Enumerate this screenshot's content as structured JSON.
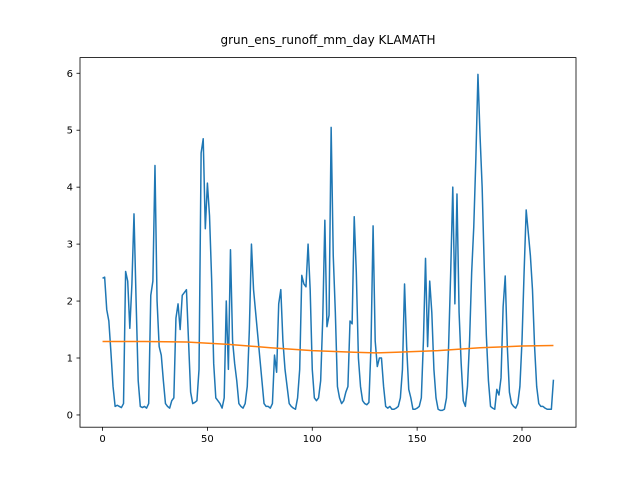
{
  "chart_data": {
    "type": "line",
    "title": "grun_ens_runoff_mm_day KLAMATH",
    "xlim": [
      -10.75,
      225.75
    ],
    "xticks": [
      0,
      50,
      100,
      150,
      200
    ],
    "ylim": [
      -0.215,
      6.275
    ],
    "yticks": [
      0,
      1,
      2,
      3,
      4,
      5,
      6
    ],
    "series": [
      {
        "color": "#1f77b4",
        "x": [
          0,
          1,
          2,
          3,
          4,
          5,
          6,
          7,
          8,
          9,
          10,
          11,
          12,
          13,
          14,
          15,
          16,
          17,
          18,
          19,
          20,
          21,
          22,
          23,
          24,
          25,
          26,
          27,
          28,
          29,
          30,
          31,
          32,
          33,
          34,
          35,
          36,
          37,
          38,
          39,
          40,
          41,
          42,
          43,
          44,
          45,
          46,
          47,
          48,
          49,
          50,
          51,
          52,
          53,
          54,
          55,
          56,
          57,
          58,
          59,
          60,
          61,
          62,
          63,
          64,
          65,
          66,
          67,
          68,
          69,
          70,
          71,
          72,
          73,
          74,
          75,
          76,
          77,
          78,
          79,
          80,
          81,
          82,
          83,
          84,
          85,
          86,
          87,
          88,
          89,
          90,
          91,
          92,
          93,
          94,
          95,
          96,
          97,
          98,
          99,
          100,
          101,
          102,
          103,
          104,
          105,
          106,
          107,
          108,
          109,
          110,
          111,
          112,
          113,
          114,
          115,
          116,
          117,
          118,
          119,
          120,
          121,
          122,
          123,
          124,
          125,
          126,
          127,
          128,
          129,
          130,
          131,
          132,
          133,
          134,
          135,
          136,
          137,
          138,
          139,
          140,
          141,
          142,
          143,
          144,
          145,
          146,
          147,
          148,
          149,
          150,
          151,
          152,
          153,
          154,
          155,
          156,
          157,
          158,
          159,
          160,
          161,
          162,
          163,
          164,
          165,
          166,
          167,
          168,
          169,
          170,
          171,
          172,
          173,
          174,
          175,
          176,
          177,
          178,
          179,
          180,
          181,
          182,
          183,
          184,
          185,
          186,
          187,
          188,
          189,
          190,
          191,
          192,
          193,
          194,
          195,
          196,
          197,
          198,
          199,
          200,
          201,
          202,
          203,
          204,
          205,
          206,
          207,
          208,
          209,
          210,
          211,
          212,
          213,
          214,
          215
        ],
        "values": [
          2.4,
          2.42,
          1.85,
          1.65,
          1.1,
          0.5,
          0.15,
          0.17,
          0.15,
          0.13,
          0.2,
          2.52,
          2.35,
          1.52,
          2.3,
          3.53,
          2.0,
          0.6,
          0.15,
          0.13,
          0.15,
          0.12,
          0.2,
          2.1,
          2.35,
          4.38,
          2.0,
          1.2,
          1.05,
          0.6,
          0.2,
          0.15,
          0.12,
          0.25,
          0.3,
          1.7,
          1.95,
          1.5,
          2.1,
          2.15,
          2.2,
          1.3,
          0.4,
          0.2,
          0.22,
          0.25,
          0.8,
          4.6,
          4.85,
          3.27,
          4.07,
          3.5,
          2.4,
          0.9,
          0.3,
          0.25,
          0.2,
          0.12,
          0.3,
          2.0,
          0.8,
          2.9,
          1.3,
          0.9,
          0.6,
          0.2,
          0.15,
          0.12,
          0.2,
          0.5,
          1.5,
          3.0,
          2.2,
          1.8,
          1.4,
          1.0,
          0.6,
          0.2,
          0.15,
          0.15,
          0.12,
          0.2,
          1.05,
          0.75,
          1.95,
          2.2,
          1.3,
          0.8,
          0.5,
          0.2,
          0.15,
          0.12,
          0.1,
          0.3,
          0.8,
          2.45,
          2.3,
          2.25,
          3.0,
          2.2,
          0.8,
          0.3,
          0.25,
          0.3,
          0.6,
          1.7,
          3.42,
          1.55,
          1.75,
          5.05,
          2.8,
          1.8,
          0.5,
          0.3,
          0.2,
          0.25,
          0.4,
          0.5,
          1.65,
          1.6,
          3.48,
          2.5,
          1.0,
          0.5,
          0.25,
          0.2,
          0.18,
          0.22,
          1.2,
          3.32,
          1.3,
          0.85,
          1.0,
          1.0,
          0.5,
          0.15,
          0.12,
          0.15,
          0.1,
          0.1,
          0.12,
          0.15,
          0.3,
          0.8,
          2.3,
          1.2,
          0.45,
          0.3,
          0.1,
          0.1,
          0.12,
          0.15,
          0.3,
          1.3,
          2.75,
          1.2,
          2.35,
          1.8,
          0.8,
          0.3,
          0.1,
          0.08,
          0.08,
          0.1,
          0.3,
          1.2,
          2.5,
          4.0,
          1.95,
          3.88,
          1.8,
          0.9,
          0.25,
          0.15,
          0.5,
          1.3,
          2.5,
          3.3,
          4.5,
          5.98,
          4.9,
          4.0,
          2.6,
          1.4,
          0.6,
          0.15,
          0.12,
          0.1,
          0.45,
          0.35,
          0.65,
          1.9,
          2.44,
          1.2,
          0.4,
          0.2,
          0.15,
          0.12,
          0.2,
          0.5,
          1.3,
          2.5,
          3.6,
          3.2,
          2.8,
          2.2,
          1.2,
          0.5,
          0.2,
          0.15,
          0.15,
          0.12,
          0.1,
          0.1,
          0.1,
          0.62
        ]
      },
      {
        "color": "#ff7f0e",
        "x": [
          0,
          20,
          40,
          60,
          80,
          100,
          120,
          130,
          140,
          160,
          180,
          200,
          215
        ],
        "values": [
          1.29,
          1.29,
          1.28,
          1.24,
          1.18,
          1.13,
          1.1,
          1.09,
          1.1,
          1.13,
          1.18,
          1.21,
          1.22
        ]
      }
    ]
  }
}
